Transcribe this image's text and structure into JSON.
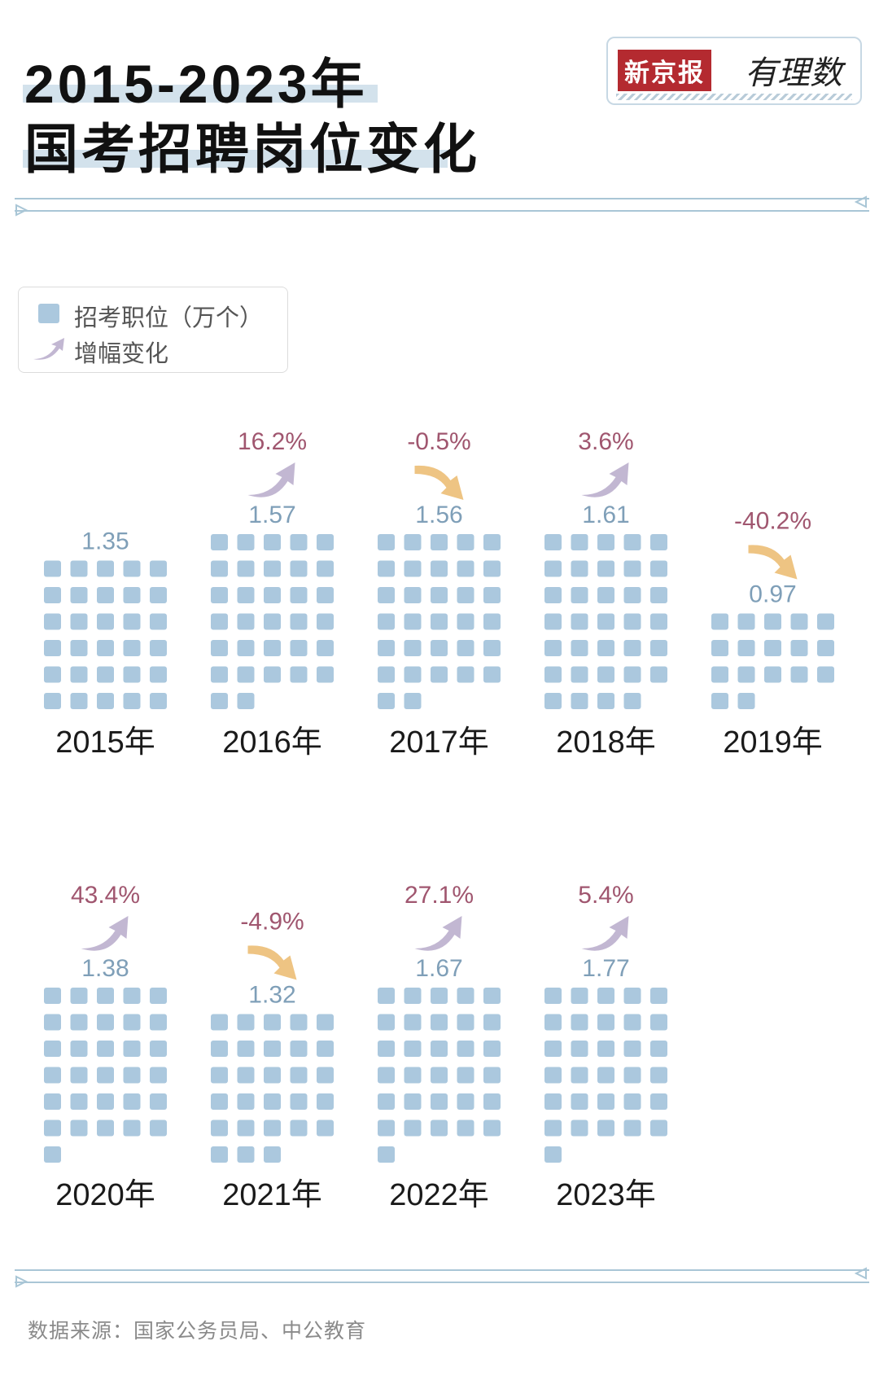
{
  "header": {
    "title_line1": "2015-2023年",
    "title_line2": "国考招聘岗位变化"
  },
  "logo": {
    "brand": "新京报",
    "script": "有理数"
  },
  "legend": {
    "positions_label": "招考职位（万个）",
    "change_label": "增幅变化"
  },
  "colors": {
    "square": "#abc8de",
    "value_text": "#7f9fb8",
    "pct_text": "#a0566f",
    "arrow_up": "#c2b7d2",
    "arrow_down": "#eec483",
    "divider": "#a9c6d6",
    "year_text": "#1a1a1a"
  },
  "chart_data": {
    "type": "waffle",
    "title": "2015-2023年国考招聘岗位变化",
    "unit": "万个",
    "categories": [
      "2015年",
      "2016年",
      "2017年",
      "2018年",
      "2019年",
      "2020年",
      "2021年",
      "2022年",
      "2023年"
    ],
    "values": [
      1.35,
      1.57,
      1.56,
      1.61,
      0.97,
      1.38,
      1.32,
      1.67,
      1.77
    ],
    "value_labels": [
      "1.35",
      "1.57",
      "1.56",
      "1.61",
      "0.97",
      "1.38",
      "1.32",
      "1.67",
      "1.77"
    ],
    "squares": [
      30,
      32,
      32,
      34,
      17,
      31,
      28,
      31,
      31
    ],
    "changes": [
      null,
      "16.2%",
      "-0.5%",
      "3.6%",
      "-40.2%",
      "43.4%",
      "-4.9%",
      "27.1%",
      "5.4%"
    ],
    "change_direction": [
      null,
      "up",
      "down",
      "up",
      "down",
      "up",
      "down",
      "up",
      "up"
    ]
  },
  "source": "数据来源：国家公务员局、中公教育"
}
